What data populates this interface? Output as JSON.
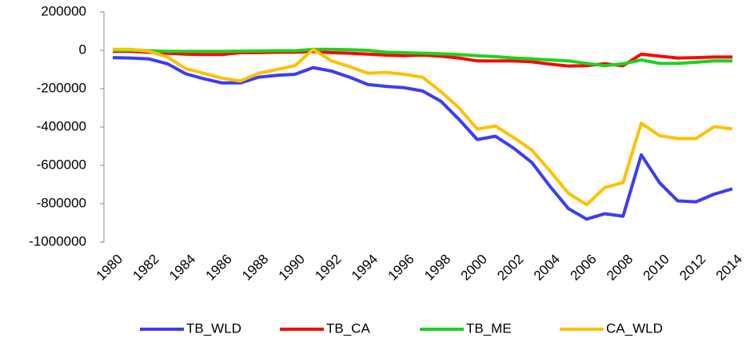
{
  "chart_data": {
    "type": "line",
    "x": [
      1980,
      1981,
      1982,
      1983,
      1984,
      1985,
      1986,
      1987,
      1988,
      1989,
      1990,
      1991,
      1992,
      1993,
      1994,
      1995,
      1996,
      1997,
      1998,
      1999,
      2000,
      2001,
      2002,
      2003,
      2004,
      2005,
      2006,
      2007,
      2008,
      2009,
      2010,
      2011,
      2012,
      2013,
      2014
    ],
    "xlim": [
      1980,
      2014
    ],
    "xticks": [
      1980,
      1982,
      1984,
      1986,
      1988,
      1990,
      1992,
      1994,
      1996,
      1998,
      2000,
      2002,
      2004,
      2006,
      2008,
      2010,
      2012,
      2014
    ],
    "ylim": [
      -1000000,
      200000
    ],
    "yticks": [
      -1000000,
      -800000,
      -600000,
      -400000,
      -200000,
      0,
      200000
    ],
    "legend": "bottom",
    "series": [
      {
        "name": "TB_WLD",
        "color": "#3c3cf5",
        "values": [
          -38000,
          -40000,
          -45000,
          -70000,
          -122000,
          -148000,
          -170000,
          -170000,
          -140000,
          -130000,
          -125000,
          -90000,
          -108000,
          -140000,
          -178000,
          -188000,
          -195000,
          -212000,
          -265000,
          -360000,
          -465000,
          -448000,
          -510000,
          -585000,
          -710000,
          -825000,
          -880000,
          -852000,
          -865000,
          -545000,
          -690000,
          -785000,
          -790000,
          -750000,
          -722000
        ]
      },
      {
        "name": "TB_CA",
        "color": "#f50a0a",
        "values": [
          -5000,
          -5000,
          -10000,
          -15000,
          -20000,
          -22000,
          -22000,
          -12000,
          -12000,
          -10000,
          -10000,
          -5000,
          -12000,
          -15000,
          -20000,
          -25000,
          -28000,
          -25000,
          -30000,
          -40000,
          -55000,
          -55000,
          -55000,
          -60000,
          -72000,
          -82000,
          -80000,
          -70000,
          -80000,
          -20000,
          -30000,
          -40000,
          -38000,
          -35000,
          -35000
        ]
      },
      {
        "name": "TB_ME",
        "color": "#1ed21e",
        "values": [
          0,
          0,
          -2000,
          -5000,
          -5000,
          -5000,
          -5000,
          -4000,
          -3000,
          -2000,
          -2000,
          5000,
          5000,
          3000,
          0,
          -10000,
          -12000,
          -15000,
          -18000,
          -22000,
          -28000,
          -33000,
          -40000,
          -45000,
          -50000,
          -55000,
          -68000,
          -80000,
          -70000,
          -50000,
          -68000,
          -68000,
          -62000,
          -55000,
          -55000
        ]
      },
      {
        "name": "CA_WLD",
        "color": "#ffc000",
        "values": [
          5000,
          5000,
          -5000,
          -35000,
          -95000,
          -120000,
          -145000,
          -160000,
          -120000,
          -100000,
          -80000,
          5000,
          -55000,
          -85000,
          -120000,
          -115000,
          -125000,
          -140000,
          -215000,
          -300000,
          -410000,
          -395000,
          -455000,
          -520000,
          -630000,
          -745000,
          -805000,
          -715000,
          -690000,
          -380000,
          -445000,
          -460000,
          -460000,
          -398000,
          -410000
        ]
      }
    ]
  }
}
